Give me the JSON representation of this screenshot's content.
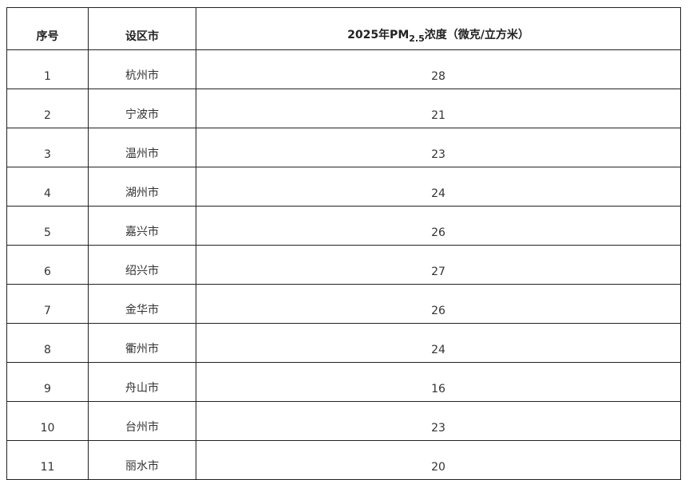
{
  "table": {
    "headers": {
      "index": "序号",
      "city": "设区市",
      "pm_prefix": "2025年PM",
      "pm_sub": "2.5",
      "pm_suffix": "浓度（微克/立方米）"
    },
    "rows": [
      {
        "index": "1",
        "city": "杭州市",
        "value": "28"
      },
      {
        "index": "2",
        "city": "宁波市",
        "value": "21"
      },
      {
        "index": "3",
        "city": "温州市",
        "value": "23"
      },
      {
        "index": "4",
        "city": "湖州市",
        "value": "24"
      },
      {
        "index": "5",
        "city": "嘉兴市",
        "value": "26"
      },
      {
        "index": "6",
        "city": "绍兴市",
        "value": "27"
      },
      {
        "index": "7",
        "city": "金华市",
        "value": "26"
      },
      {
        "index": "8",
        "city": "衢州市",
        "value": "24"
      },
      {
        "index": "9",
        "city": "舟山市",
        "value": "16"
      },
      {
        "index": "10",
        "city": "台州市",
        "value": "23"
      },
      {
        "index": "11",
        "city": "丽水市",
        "value": "20"
      }
    ]
  }
}
